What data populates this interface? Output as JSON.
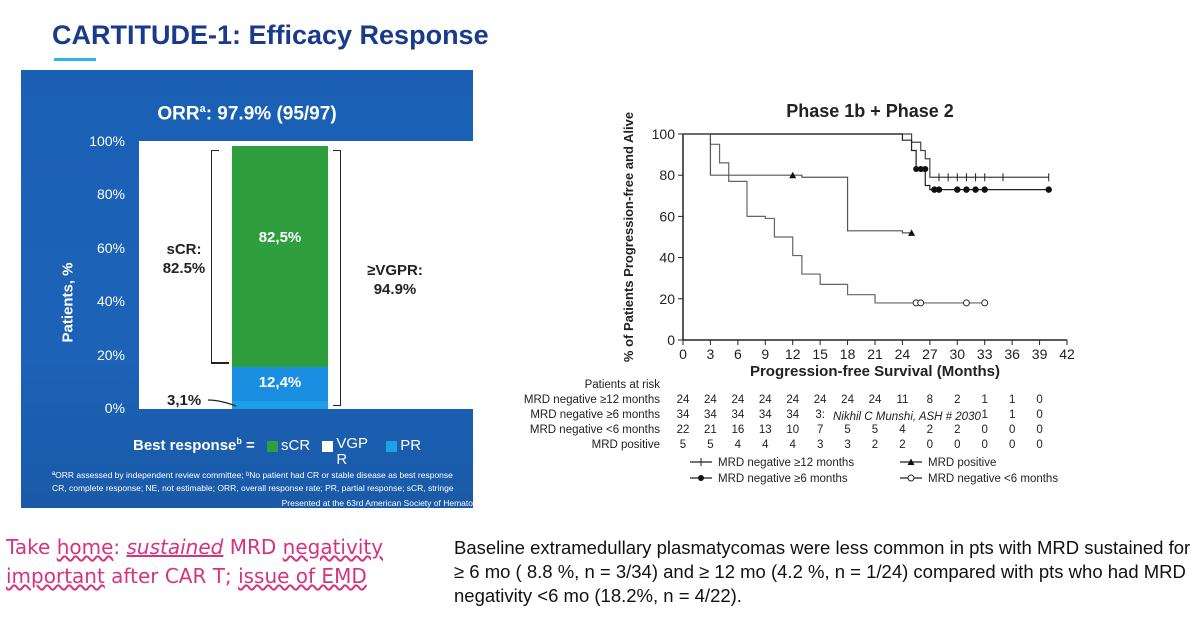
{
  "slide": {
    "title": "CARTITUDE-1: Efficacy Response"
  },
  "left_panel": {
    "orr_prefix": "ORR",
    "orr_sup": "a",
    "orr_value": ": 97.9% (95/97)",
    "ylabel": "Patients, %",
    "yticks": [
      "100%",
      "80%",
      "60%",
      "40%",
      "20%",
      "0%"
    ],
    "scr_bracket": "sCR:\n82.5%",
    "vgpr_bracket": "≥VGPR:\n94.9%",
    "small_label": "3,1%",
    "legend_prefix": "Best response",
    "legend_sup": "b",
    "legend_eq": " =",
    "legend_items": [
      {
        "label": "sCR",
        "color": "#2e9e3f"
      },
      {
        "label": "VGP\nR",
        "color": "#ffffff"
      },
      {
        "label": "PR",
        "color": "#1ea0e6"
      }
    ],
    "footnote1": "ªORR assessed by independent review committee; ᵇNo patient had CR or stable disease as best response",
    "footnote2": "CR, complete response; NE, not estimable; ORR, overall response rate; PR, partial response; sCR, stringe",
    "presented": "Presented at the 63rd American Society of Hemato",
    "colors": {
      "panel": "#1a5fb4",
      "scr": "#2e9e3f",
      "pr": "#1ea0e6",
      "vgpr": "#1a8ee0"
    }
  },
  "km": {
    "title": "Phase 1b + Phase 2",
    "ylabel": "% of Patients Progression-free and Alive",
    "xlabel": "Progression-free Survival (Months)",
    "attribution": "Nikhil C Munshi, ASH # 2030",
    "risk_header": "Patients at risk",
    "risk_rows": [
      {
        "label": "MRD negative ≥12 months",
        "values": [
          "24",
          "24",
          "24",
          "24",
          "24",
          "24",
          "24",
          "24",
          "11",
          "8",
          "2",
          "1",
          "1",
          "0"
        ]
      },
      {
        "label": "MRD negative ≥6 months",
        "values": [
          "34",
          "34",
          "34",
          "34",
          "34",
          "3:",
          "",
          "",
          "",
          "",
          "",
          "1",
          "1",
          "0"
        ]
      },
      {
        "label": "MRD negative <6 months",
        "values": [
          "22",
          "21",
          "16",
          "13",
          "10",
          "7",
          "5",
          "5",
          "4",
          "2",
          "2",
          "0",
          "0",
          "0"
        ]
      },
      {
        "label": "MRD positive",
        "values": [
          "5",
          "5",
          "4",
          "4",
          "4",
          "3",
          "3",
          "2",
          "2",
          "0",
          "0",
          "0",
          "0",
          "0"
        ]
      }
    ],
    "legend": [
      {
        "label": "MRD negative ≥12 months",
        "marker": "plus"
      },
      {
        "label": "MRD positive",
        "marker": "triangle"
      },
      {
        "label": "MRD negative ≥6 months",
        "marker": "dot"
      },
      {
        "label": "MRD negative <6 months",
        "marker": "circle"
      }
    ]
  },
  "take_home": {
    "line1_a": "Take ",
    "line1_b": "home",
    "line1_c": ": ",
    "line1_d": "sustained",
    "line1_e": " MRD ",
    "line1_f": "negativity",
    "line2_a": "important",
    "line2_b": " after CAR T; ",
    "line2_c": "issue of EMD"
  },
  "baseline_text": "Baseline extramedullary plasmatycomas were less common in pts with MRD sustained for ≥ 6 mo ( 8.8 %, n = 3/34) and ≥ 12 mo (4.2 %, n = 1/24) compared with pts who had MRD negativity <6 mo (18.2%, n = 4/22).",
  "chart_data": [
    {
      "type": "bar",
      "title": "ORRᵃ: 97.9% (95/97)",
      "ylabel": "Patients, %",
      "ylim": [
        0,
        100
      ],
      "categories": [
        "Best response"
      ],
      "series": [
        {
          "name": "PR",
          "values": [
            3.1
          ]
        },
        {
          "name": "VGPR",
          "values": [
            12.4
          ]
        },
        {
          "name": "sCR",
          "values": [
            82.5
          ]
        }
      ],
      "data_labels": [
        "3,1%",
        "12,4%",
        "82,5%"
      ]
    },
    {
      "type": "line",
      "title": "Phase 1b + Phase 2",
      "xlabel": "Progression-free Survival (Months)",
      "ylabel": "% of Patients Progression-free and Alive",
      "xlim": [
        0,
        42
      ],
      "ylim": [
        0,
        100
      ],
      "xticks": [
        0,
        3,
        6,
        9,
        12,
        15,
        18,
        21,
        24,
        27,
        30,
        33,
        36,
        39,
        42
      ],
      "yticks": [
        0,
        20,
        40,
        60,
        80,
        100
      ],
      "series": [
        {
          "name": "MRD negative ≥12 months",
          "points": [
            [
              0,
              100
            ],
            [
              24,
              100
            ],
            [
              25,
              96
            ],
            [
              26,
              92
            ],
            [
              26.5,
              88
            ],
            [
              27,
              79
            ],
            [
              40,
              79
            ]
          ]
        },
        {
          "name": "MRD negative ≥6 months",
          "points": [
            [
              0,
              100
            ],
            [
              18,
              100
            ],
            [
              24,
              97
            ],
            [
              25,
              92
            ],
            [
              25.5,
              83
            ],
            [
              26,
              82
            ],
            [
              26.5,
              75
            ],
            [
              27,
              73
            ],
            [
              40,
              73
            ]
          ]
        },
        {
          "name": "MRD negative <6 months",
          "points": [
            [
              0,
              100
            ],
            [
              3,
              95
            ],
            [
              4,
              86
            ],
            [
              5,
              77
            ],
            [
              7,
              60
            ],
            [
              9,
              59
            ],
            [
              10,
              50
            ],
            [
              12,
              41
            ],
            [
              13,
              32
            ],
            [
              15,
              27
            ],
            [
              18,
              22
            ],
            [
              21,
              18
            ],
            [
              33,
              18
            ]
          ]
        },
        {
          "name": "MRD positive",
          "points": [
            [
              0,
              100
            ],
            [
              3,
              80
            ],
            [
              12,
              80
            ],
            [
              13,
              79
            ],
            [
              18,
              53
            ],
            [
              24,
              52
            ],
            [
              25,
              52
            ]
          ]
        }
      ]
    }
  ]
}
